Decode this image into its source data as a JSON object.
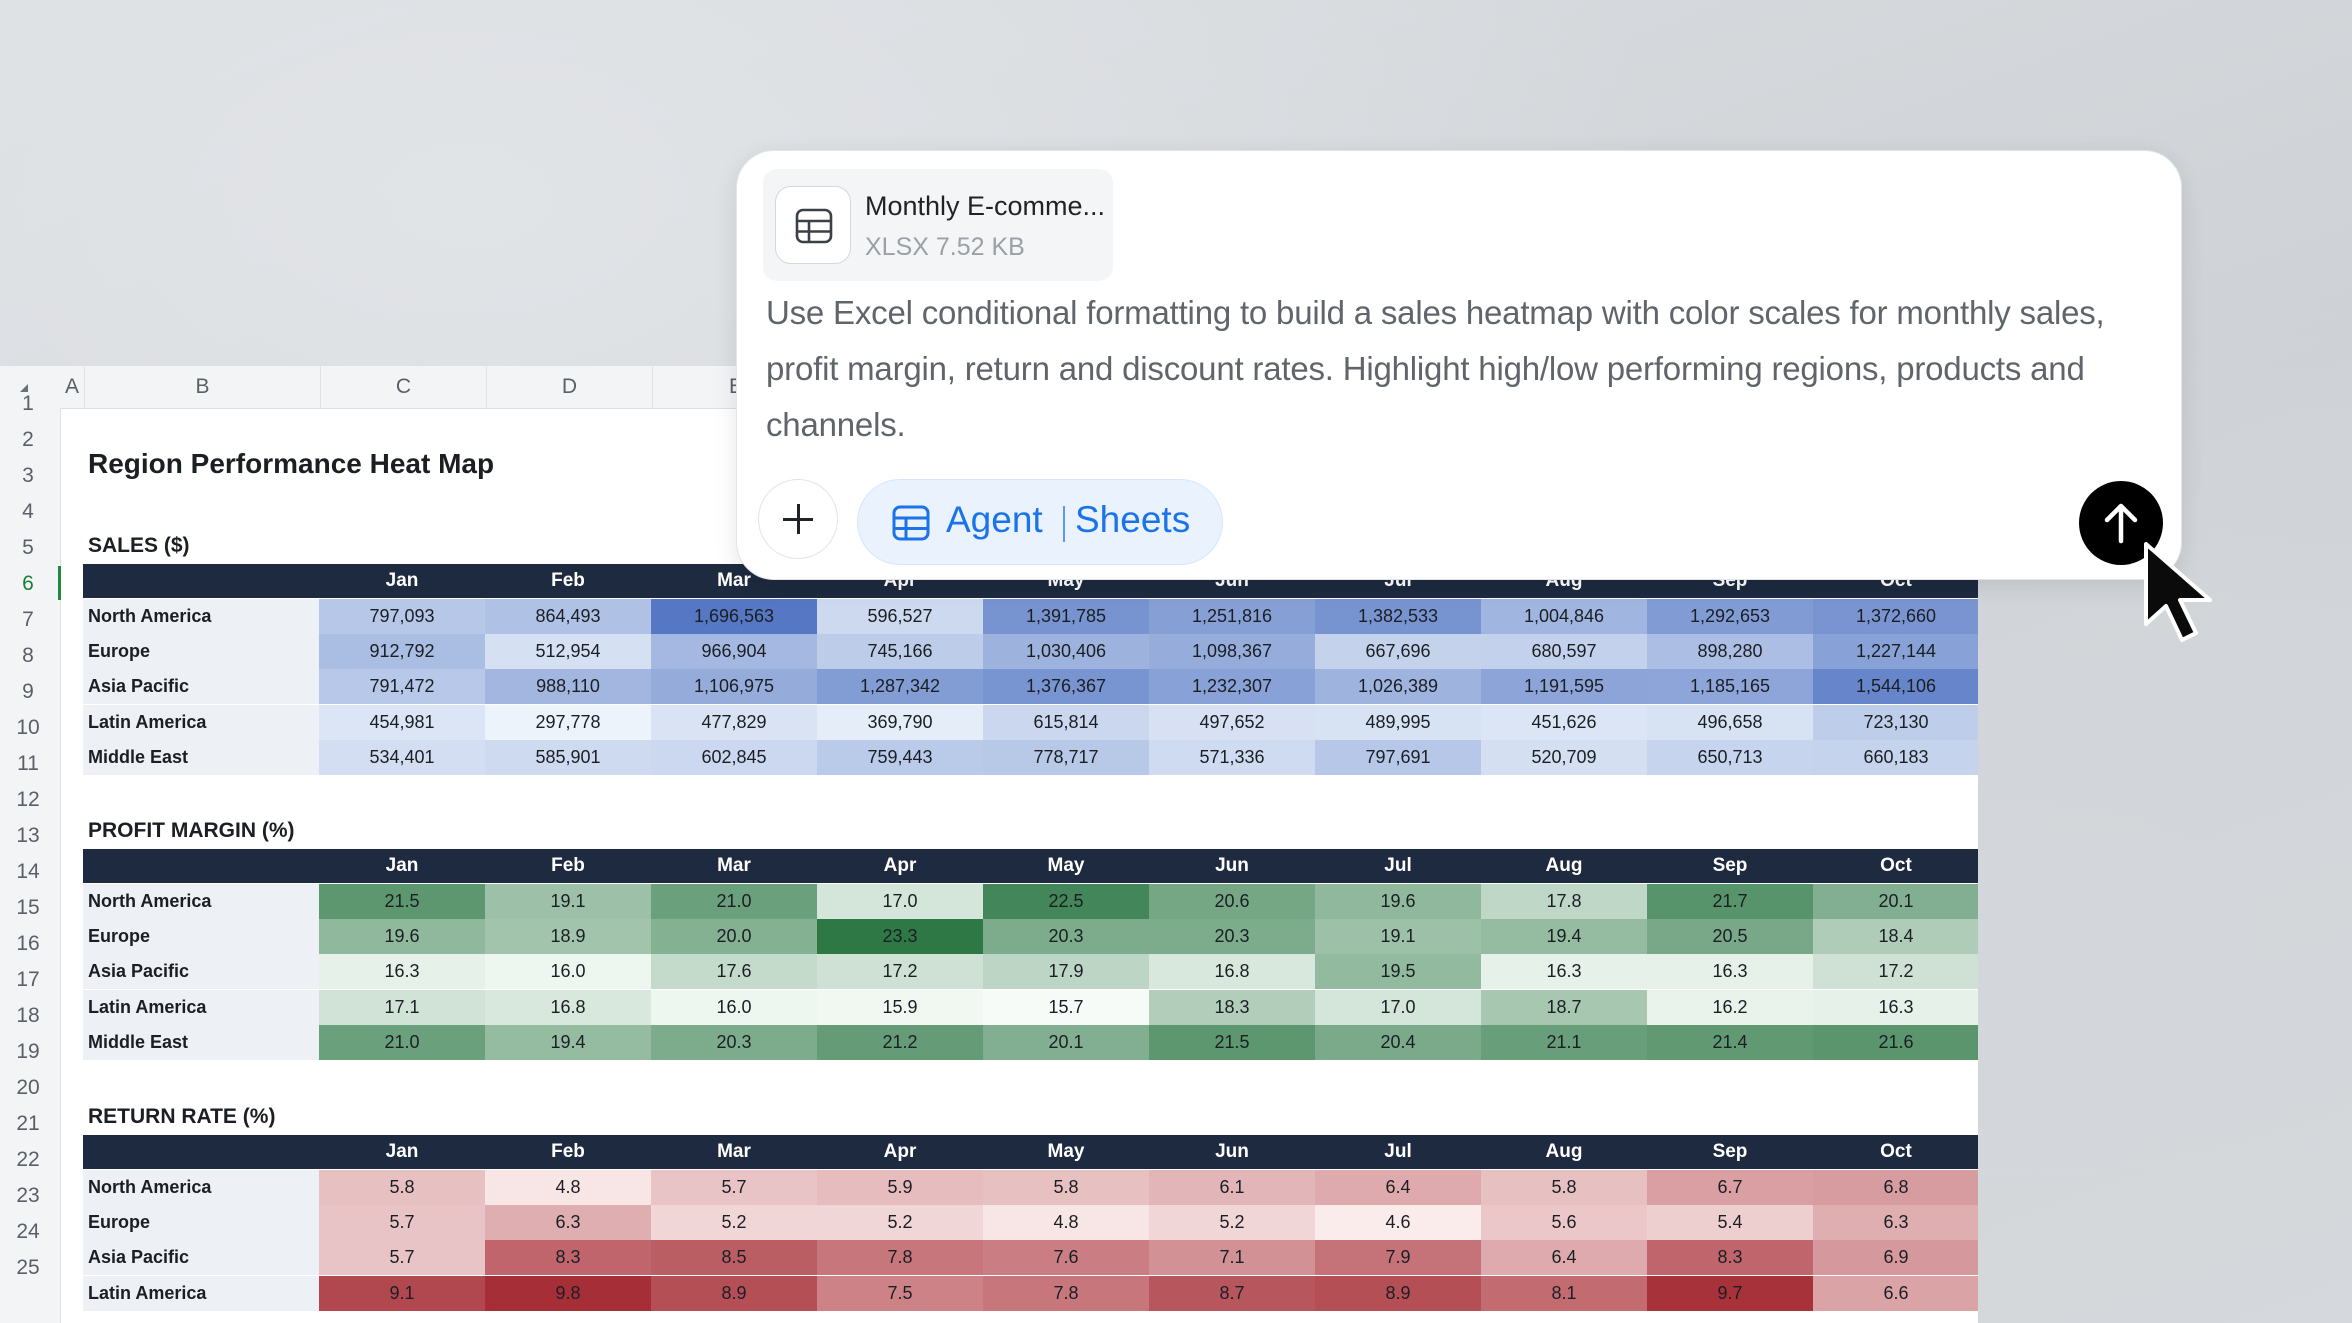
{
  "sheet": {
    "columns": [
      "A",
      "B",
      "C",
      "D",
      "E"
    ],
    "rows": [
      "1",
      "2",
      "3",
      "4",
      "5",
      "6",
      "7",
      "8",
      "9",
      "10",
      "11",
      "12",
      "13",
      "14",
      "15",
      "16",
      "17",
      "18",
      "19",
      "20",
      "21",
      "22",
      "23",
      "24",
      "25"
    ],
    "title": "Region Performance Heat Map",
    "months": [
      "Jan",
      "Feb",
      "Mar",
      "Apr",
      "May",
      "Jun",
      "Jul",
      "Aug",
      "Sep",
      "Oct"
    ],
    "sections": [
      {
        "heading": "SALES ($)",
        "scale": "blue",
        "rows": [
          {
            "region": "North America",
            "values": [
              "797,093",
              "864,493",
              "1,696,563",
              "596,527",
              "1,391,785",
              "1,251,816",
              "1,382,533",
              "1,004,846",
              "1,292,653",
              "1,372,660"
            ]
          },
          {
            "region": "Europe",
            "values": [
              "912,792",
              "512,954",
              "966,904",
              "745,166",
              "1,030,406",
              "1,098,367",
              "667,696",
              "680,597",
              "898,280",
              "1,227,144"
            ]
          },
          {
            "region": "Asia Pacific",
            "values": [
              "791,472",
              "988,110",
              "1,106,975",
              "1,287,342",
              "1,376,367",
              "1,232,307",
              "1,026,389",
              "1,191,595",
              "1,185,165",
              "1,544,106"
            ]
          },
          {
            "region": "Latin America",
            "values": [
              "454,981",
              "297,778",
              "477,829",
              "369,790",
              "615,814",
              "497,652",
              "489,995",
              "451,626",
              "496,658",
              "723,130"
            ]
          },
          {
            "region": "Middle East",
            "values": [
              "534,401",
              "585,901",
              "602,845",
              "759,443",
              "778,717",
              "571,336",
              "797,691",
              "520,709",
              "650,713",
              "660,183"
            ]
          }
        ]
      },
      {
        "heading": "PROFIT MARGIN (%)",
        "scale": "green",
        "rows": [
          {
            "region": "North America",
            "values": [
              "21.5",
              "19.1",
              "21.0",
              "17.0",
              "22.5",
              "20.6",
              "19.6",
              "17.8",
              "21.7",
              "20.1"
            ]
          },
          {
            "region": "Europe",
            "values": [
              "19.6",
              "18.9",
              "20.0",
              "23.3",
              "20.3",
              "20.3",
              "19.1",
              "19.4",
              "20.5",
              "18.4"
            ]
          },
          {
            "region": "Asia Pacific",
            "values": [
              "16.3",
              "16.0",
              "17.6",
              "17.2",
              "17.9",
              "16.8",
              "19.5",
              "16.3",
              "16.3",
              "17.2"
            ]
          },
          {
            "region": "Latin America",
            "values": [
              "17.1",
              "16.8",
              "16.0",
              "15.9",
              "15.7",
              "18.3",
              "17.0",
              "18.7",
              "16.2",
              "16.3"
            ]
          },
          {
            "region": "Middle East",
            "values": [
              "21.0",
              "19.4",
              "20.3",
              "21.2",
              "20.1",
              "21.5",
              "20.4",
              "21.1",
              "21.4",
              "21.6"
            ]
          }
        ]
      },
      {
        "heading": "RETURN RATE (%)",
        "scale": "red",
        "rows": [
          {
            "region": "North America",
            "values": [
              "5.8",
              "4.8",
              "5.7",
              "5.9",
              "5.8",
              "6.1",
              "6.4",
              "5.8",
              "6.7",
              "6.8"
            ]
          },
          {
            "region": "Europe",
            "values": [
              "5.7",
              "6.3",
              "5.2",
              "5.2",
              "4.8",
              "5.2",
              "4.6",
              "5.6",
              "5.4",
              "6.3"
            ]
          },
          {
            "region": "Asia Pacific",
            "values": [
              "5.7",
              "8.3",
              "8.5",
              "7.8",
              "7.6",
              "7.1",
              "7.9",
              "6.4",
              "8.3",
              "6.9"
            ]
          },
          {
            "region": "Latin America",
            "values": [
              "9.1",
              "9.8",
              "8.9",
              "7.5",
              "7.8",
              "8.7",
              "8.9",
              "8.1",
              "9.7",
              "6.6"
            ]
          }
        ]
      }
    ]
  },
  "composer": {
    "attachment": {
      "name": "Monthly E-comme...",
      "meta": "XLSX 7.52 KB"
    },
    "prompt": "Use Excel conditional formatting to build a sales heatmap with color scales for monthly sales, profit margin, return and discount rates. Highlight high/low performing regions, products and channels.",
    "agent_label": "Agent",
    "mode_label": "Sheets"
  },
  "colors": {
    "table_header": "#1d2a3f",
    "accent_blue": "#1a73e8",
    "active_row": "#1f8a3c"
  }
}
